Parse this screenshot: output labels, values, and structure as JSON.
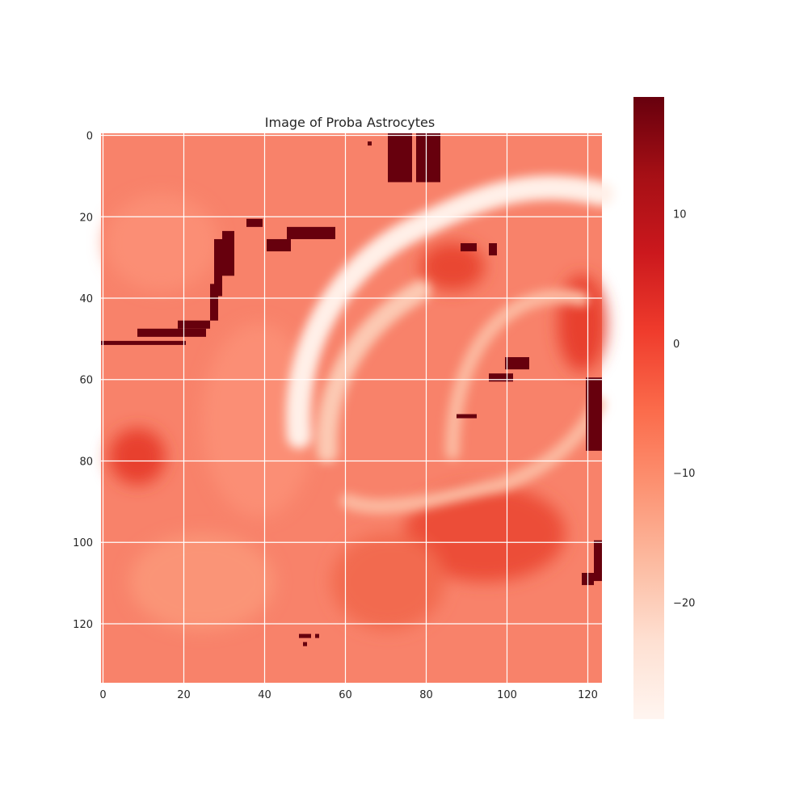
{
  "chart_data": {
    "type": "heatmap",
    "title": "Image of Proba Astrocytes",
    "xlabel": "",
    "ylabel": "",
    "colormap": "Reds",
    "image_shape": {
      "rows": 135,
      "cols": 124
    },
    "xlim": [
      -0.5,
      123.5
    ],
    "ylim": [
      134.5,
      -0.5
    ],
    "x_ticks": [
      0,
      20,
      40,
      60,
      80,
      100,
      120
    ],
    "y_ticks": [
      0,
      20,
      40,
      60,
      80,
      100,
      120
    ],
    "grid": true,
    "colorbar": {
      "range": [
        -29,
        19
      ],
      "ticks": [
        10,
        0,
        -10,
        -20
      ],
      "tick_labels": [
        "10",
        "0",
        "−10",
        "−20"
      ],
      "position": "right"
    },
    "colors": {
      "min": "#fff5f0",
      "low": "#fcbba1",
      "mid": "#fb6a4a",
      "high": "#cb181d",
      "max": "#67000d",
      "grid": "#ffffff"
    }
  }
}
